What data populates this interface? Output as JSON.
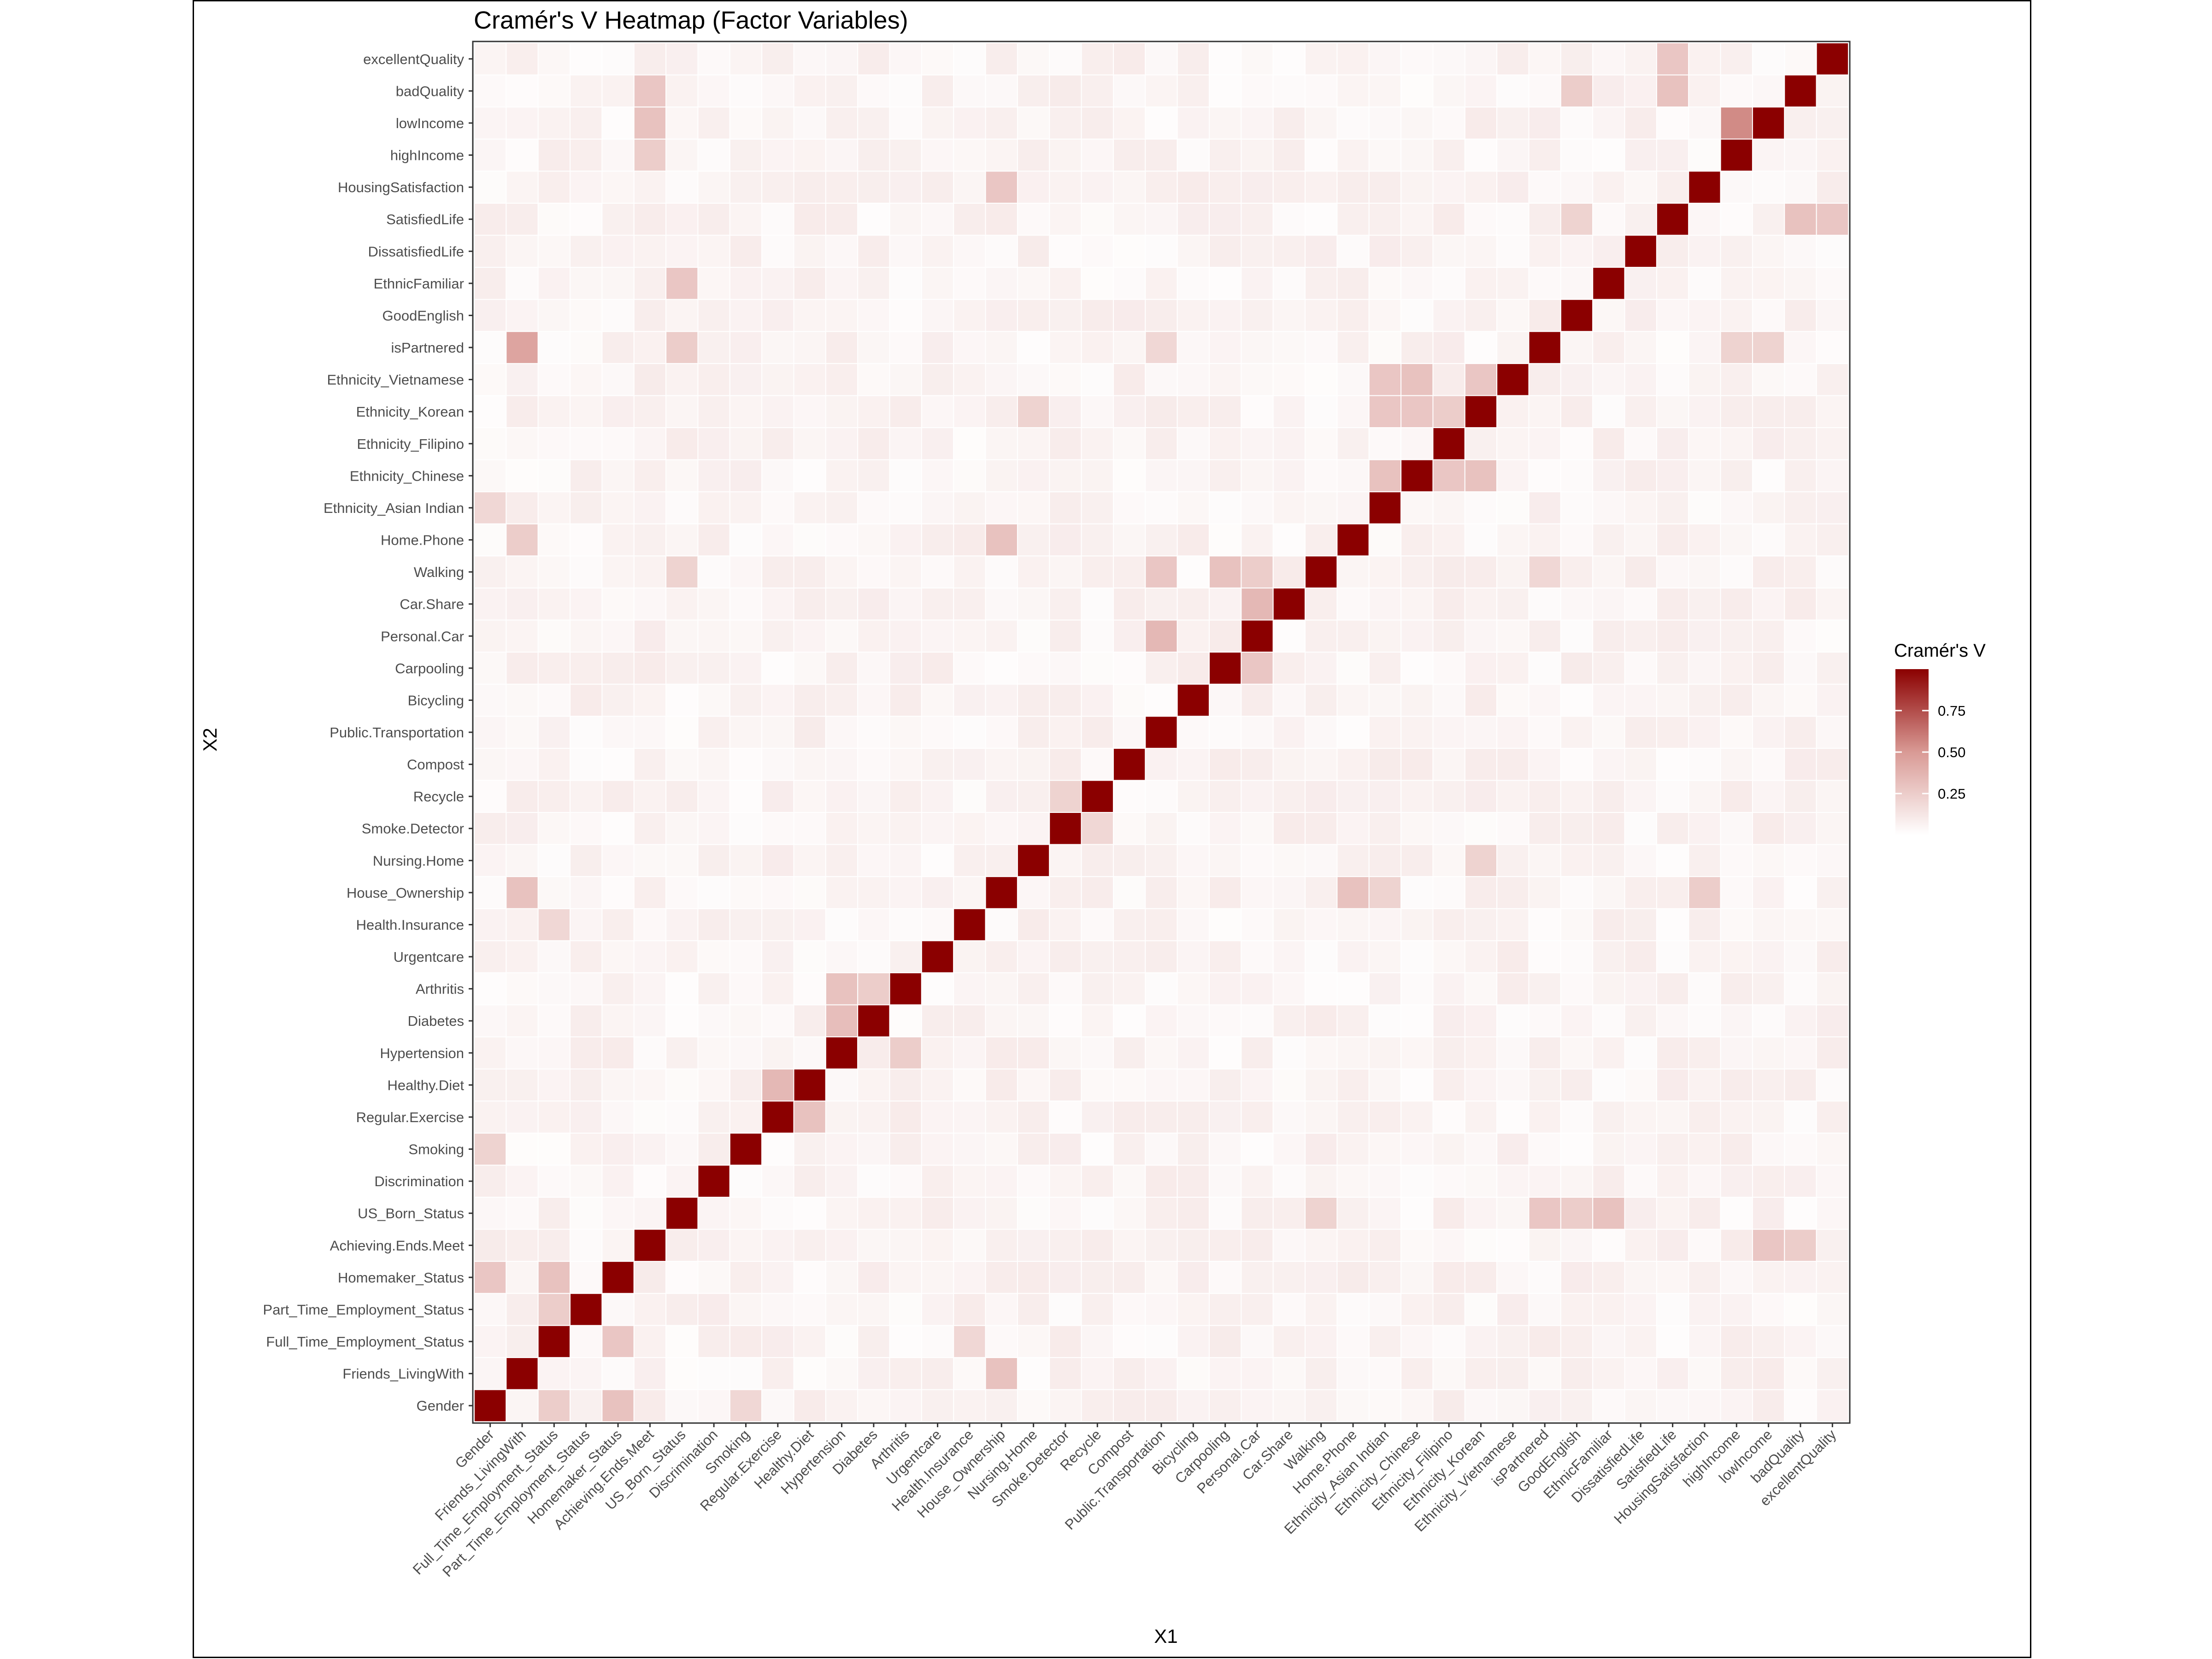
{
  "chart_data": {
    "type": "heatmap",
    "title": "Cramér's V Heatmap (Factor Variables)",
    "xlabel": "X1",
    "ylabel": "X2",
    "legend": {
      "title": "Cramér's V",
      "ticks": [
        0.25,
        0.5,
        0.75
      ],
      "tick_labels": [
        "0.25",
        "0.50",
        "0.75"
      ],
      "range": [
        0,
        1
      ],
      "placement": "right",
      "low_color": "#ffffff",
      "high_color": "#8b0000"
    },
    "grid": true,
    "variables": [
      "Gender",
      "Friends_LivingWith",
      "Full_Time_Employment_Status",
      "Part_Time_Employment_Status",
      "Homemaker_Status",
      "Achieving.Ends.Meet",
      "US_Born_Status",
      "Discrimination",
      "Smoking",
      "Regular.Exercise",
      "Healthy.Diet",
      "Hypertension",
      "Diabetes",
      "Arthritis",
      "Urgentcare",
      "Health.Insurance",
      "House_Ownership",
      "Nursing.Home",
      "Smoke.Detector",
      "Recycle",
      "Compost",
      "Public.Transportation",
      "Bicycling",
      "Carpooling",
      "Personal.Car",
      "Car.Share",
      "Walking",
      "Home.Phone",
      "Ethnicity_Asian Indian",
      "Ethnicity_Chinese",
      "Ethnicity_Filipino",
      "Ethnicity_Korean",
      "Ethnicity_Vietnamese",
      "isPartnered",
      "GoodEnglish",
      "EthnicFamiliar",
      "DissatisfiedLife",
      "SatisfiedLife",
      "HousingSatisfaction",
      "highIncome",
      "lowIncome",
      "badQuality",
      "excellentQuality"
    ],
    "off_diagonal_default": 0.05,
    "notable_pairs": [
      {
        "x": "Friends_LivingWith",
        "y": "isPartnered",
        "v": 0.45
      },
      {
        "x": "highIncome",
        "y": "lowIncome",
        "v": 0.55
      },
      {
        "x": "Regular.Exercise",
        "y": "Healthy.Diet",
        "v": 0.35
      },
      {
        "x": "Hypertension",
        "y": "Diabetes",
        "v": 0.32
      },
      {
        "x": "Hypertension",
        "y": "Arthritis",
        "v": 0.3
      },
      {
        "x": "Diabetes",
        "y": "Arthritis",
        "v": 0.25
      },
      {
        "x": "Public.Transportation",
        "y": "Personal.Car",
        "v": 0.35
      },
      {
        "x": "Public.Transportation",
        "y": "Walking",
        "v": 0.28
      },
      {
        "x": "Personal.Car",
        "y": "Car.Share",
        "v": 0.35
      },
      {
        "x": "Carpooling",
        "y": "Walking",
        "v": 0.3
      },
      {
        "x": "Personal.Car",
        "y": "Walking",
        "v": 0.25
      },
      {
        "x": "Personal.Car",
        "y": "Carpooling",
        "v": 0.28
      },
      {
        "x": "House_Ownership",
        "y": "Home.Phone",
        "v": 0.3
      },
      {
        "x": "House_Ownership",
        "y": "Friends_LivingWith",
        "v": 0.3
      },
      {
        "x": "Gender",
        "y": "Homemaker_Status",
        "v": 0.28
      },
      {
        "x": "Full_Time_Employment_Status",
        "y": "Homemaker_Status",
        "v": 0.3
      },
      {
        "x": "Full_Time_Employment_Status",
        "y": "Part_Time_Employment_Status",
        "v": 0.25
      },
      {
        "x": "Full_Time_Employment_Status",
        "y": "Gender",
        "v": 0.25
      },
      {
        "x": "Homemaker_Status",
        "y": "Gender",
        "v": 0.3
      },
      {
        "x": "Homemaker_Status",
        "y": "Full_Time_Employment_Status",
        "v": 0.28
      },
      {
        "x": "Friends_LivingWith",
        "y": "Home.Phone",
        "v": 0.25
      },
      {
        "x": "Friends_LivingWith",
        "y": "House_Ownership",
        "v": 0.3
      },
      {
        "x": "Ethnicity_Asian Indian",
        "y": "Ethnicity_Chinese",
        "v": 0.3
      },
      {
        "x": "Ethnicity_Asian Indian",
        "y": "Ethnicity_Korean",
        "v": 0.28
      },
      {
        "x": "Ethnicity_Asian Indian",
        "y": "Ethnicity_Vietnamese",
        "v": 0.28
      },
      {
        "x": "Ethnicity_Chinese",
        "y": "Ethnicity_Korean",
        "v": 0.28
      },
      {
        "x": "Ethnicity_Chinese",
        "y": "Ethnicity_Vietnamese",
        "v": 0.3
      },
      {
        "x": "Ethnicity_Korean",
        "y": "Ethnicity_Vietnamese",
        "v": 0.28
      },
      {
        "x": "Ethnicity_Korean",
        "y": "Ethnicity_Chinese",
        "v": 0.3
      },
      {
        "x": "Ethnicity_Filipino",
        "y": "Ethnicity_Chinese",
        "v": 0.28
      },
      {
        "x": "Ethnicity_Filipino",
        "y": "Ethnicity_Korean",
        "v": 0.25
      },
      {
        "x": "isPartnered",
        "y": "US_Born_Status",
        "v": 0.28
      },
      {
        "x": "GoodEnglish",
        "y": "US_Born_Status",
        "v": 0.25
      },
      {
        "x": "EthnicFamiliar",
        "y": "US_Born_Status",
        "v": 0.3
      },
      {
        "x": "US_Born_Status",
        "y": "EthnicFamiliar",
        "v": 0.28
      },
      {
        "x": "US_Born_Status",
        "y": "isPartnered",
        "v": 0.25
      },
      {
        "x": "SatisfiedLife",
        "y": "excellentQuality",
        "v": 0.28
      },
      {
        "x": "SatisfiedLife",
        "y": "badQuality",
        "v": 0.3
      },
      {
        "x": "badQuality",
        "y": "SatisfiedLife",
        "v": 0.3
      },
      {
        "x": "excellentQuality",
        "y": "SatisfiedLife",
        "v": 0.28
      },
      {
        "x": "lowIncome",
        "y": "Achieving.Ends.Meet",
        "v": 0.28
      },
      {
        "x": "badQuality",
        "y": "Achieving.Ends.Meet",
        "v": 0.25
      },
      {
        "x": "Achieving.Ends.Meet",
        "y": "lowIncome",
        "v": 0.3
      },
      {
        "x": "Achieving.Ends.Meet",
        "y": "highIncome",
        "v": 0.25
      },
      {
        "x": "Achieving.Ends.Meet",
        "y": "badQuality",
        "v": 0.28
      },
      {
        "x": "House_Ownership",
        "y": "HousingSatisfaction",
        "v": 0.28
      },
      {
        "x": "HousingSatisfaction",
        "y": "House_Ownership",
        "v": 0.25
      },
      {
        "x": "Home.Phone",
        "y": "House_Ownership",
        "v": 0.3
      },
      {
        "x": "Ethnicity_Asian Indian",
        "y": "House_Ownership",
        "v": 0.22
      },
      {
        "x": "GoodEnglish",
        "y": "badQuality",
        "v": 0.25
      },
      {
        "x": "GoodEnglish",
        "y": "SatisfiedLife",
        "v": 0.22
      },
      {
        "x": "highIncome",
        "y": "isPartnered",
        "v": 0.22
      },
      {
        "x": "lowIncome",
        "y": "isPartnered",
        "v": 0.22
      },
      {
        "x": "Ethnicity_Korean",
        "y": "Nursing.Home",
        "v": 0.22
      },
      {
        "x": "Nursing.Home",
        "y": "Ethnicity_Korean",
        "v": 0.22
      },
      {
        "x": "Health.Insurance",
        "y": "Full_Time_Employment_Status",
        "v": 0.2
      },
      {
        "x": "Full_Time_Employment_Status",
        "y": "Health.Insurance",
        "v": 0.2
      },
      {
        "x": "Recycle",
        "y": "Smoke.Detector",
        "v": 0.2
      },
      {
        "x": "Smoke.Detector",
        "y": "Recycle",
        "v": 0.22
      },
      {
        "x": "Gender",
        "y": "Smoking",
        "v": 0.22
      },
      {
        "x": "Smoking",
        "y": "Gender",
        "v": 0.2
      },
      {
        "x": "Gender",
        "y": "Ethnicity_Asian Indian",
        "v": 0.2
      },
      {
        "x": "US_Born_Status",
        "y": "Walking",
        "v": 0.22
      },
      {
        "x": "Walking",
        "y": "US_Born_Status",
        "v": 0.22
      },
      {
        "x": "Public.Transportation",
        "y": "isPartnered",
        "v": 0.2
      },
      {
        "x": "isPartnered",
        "y": "Walking",
        "v": 0.2
      },
      {
        "x": "Achieving.Ends.Meet",
        "y": "badQuality",
        "v": 0.28
      },
      {
        "x": "Arthritis",
        "y": "Hypertension",
        "v": 0.25
      },
      {
        "x": "Healthy.Diet",
        "y": "Regular.Exercise",
        "v": 0.3
      }
    ],
    "diagonal": 1.0
  }
}
